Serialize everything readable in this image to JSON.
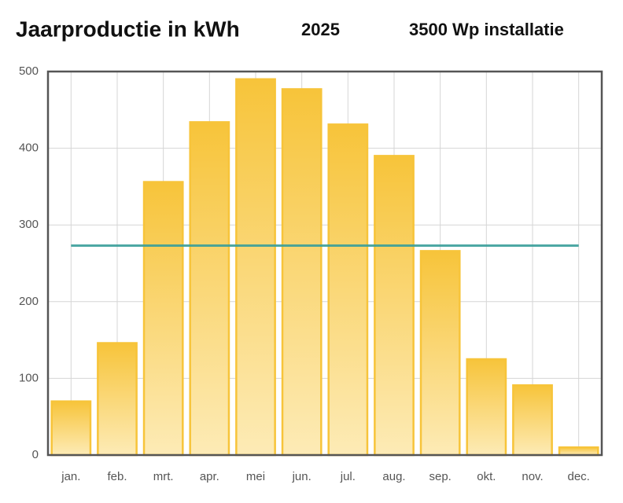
{
  "chart_data": {
    "type": "bar",
    "title": "Jaarproductie in kWh",
    "subtitle": "2025",
    "annotation": "3500 Wp installatie",
    "categories": [
      "jan.",
      "feb.",
      "mrt.",
      "apr.",
      "mei",
      "jun.",
      "jul.",
      "aug.",
      "sep.",
      "okt.",
      "nov.",
      "dec."
    ],
    "series": [
      {
        "type": "bar",
        "color": "#f7c43a",
        "values": [
          70,
          146,
          356,
          434,
          490,
          477,
          431,
          390,
          266,
          125,
          91,
          10
        ]
      },
      {
        "type": "line",
        "color": "#3a9e9a",
        "values": [
          273,
          273,
          273,
          273,
          273,
          273,
          273,
          273,
          273,
          273,
          273,
          273
        ]
      }
    ],
    "ylim": [
      0,
      500
    ],
    "yticks": [
      0,
      100,
      200,
      300,
      400,
      500
    ],
    "grid": true
  }
}
